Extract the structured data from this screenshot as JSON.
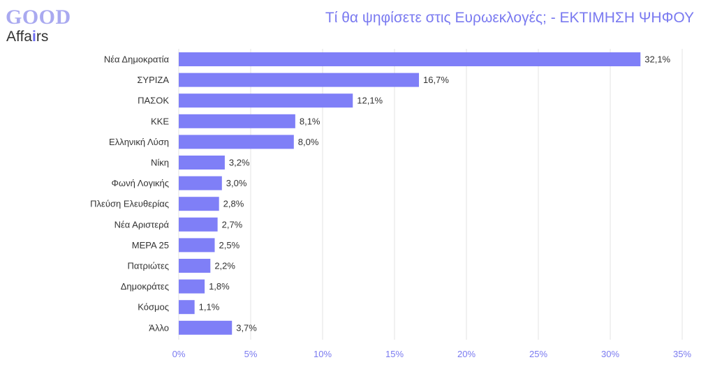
{
  "logo": {
    "brand_top": "GOOD",
    "brand_bottom_a": "Affa",
    "brand_bottom_i": "i",
    "brand_bottom_b": "rs"
  },
  "colors": {
    "bar": "#7f7ff7",
    "title": "#7a7af0",
    "grid": "#e3e3e3",
    "logo_top": "#a9a9f0"
  },
  "chart_data": {
    "type": "bar",
    "orientation": "horizontal",
    "title": "Τί θα ψηφίσετε στις Ευρωεκλογές; - ΕΚΤΙΜΗΣΗ ΨΗΦΟΥ",
    "xlabel": "",
    "ylabel": "",
    "categories": [
      "Νέα Δημοκρατία",
      "ΣΥΡΙΖΑ",
      "ΠΑΣΟΚ",
      "ΚΚΕ",
      "Ελληνική Λύση",
      "Νίκη",
      "Φωνή Λογικής",
      "Πλεύση Ελευθερίας",
      "Νέα Αριστερά",
      "ΜΕΡΑ 25",
      "Πατριώτες",
      "Δημοκράτες",
      "Κόσμος",
      "Άλλο"
    ],
    "values": [
      32.1,
      16.7,
      12.1,
      8.1,
      8.0,
      3.2,
      3.0,
      2.8,
      2.7,
      2.5,
      2.2,
      1.8,
      1.1,
      3.7
    ],
    "value_labels": [
      "32,1%",
      "16,7%",
      "12,1%",
      "8,1%",
      "8,0%",
      "3,2%",
      "3,0%",
      "2,8%",
      "2,7%",
      "2,5%",
      "2,2%",
      "1,8%",
      "1,1%",
      "3,7%"
    ],
    "xlim": [
      0,
      35
    ],
    "x_ticks": [
      0,
      5,
      10,
      15,
      20,
      25,
      30,
      35
    ],
    "x_tick_labels": [
      "0%",
      "5%",
      "10%",
      "15%",
      "20%",
      "25%",
      "30%",
      "35%"
    ],
    "grid": true,
    "legend": "none"
  }
}
